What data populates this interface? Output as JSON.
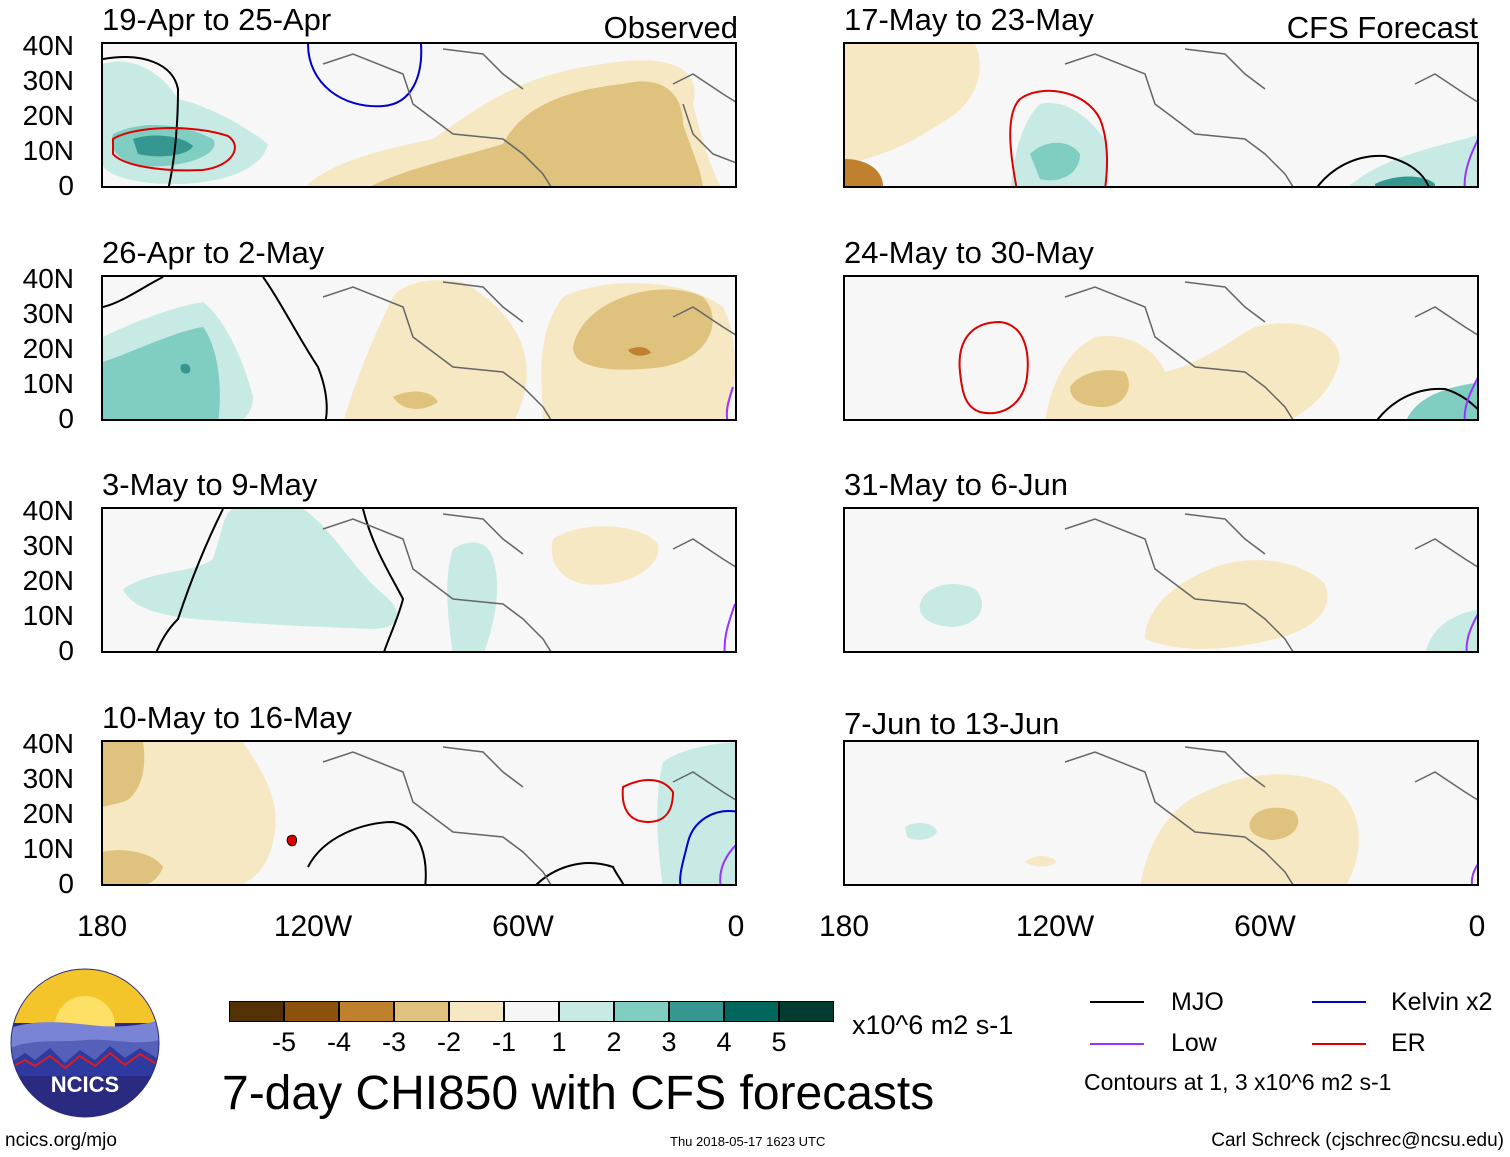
{
  "panels": [
    {
      "title": "19-Apr to 25-Apr",
      "label": "Observed"
    },
    {
      "title": "26-Apr to 2-May",
      "label": ""
    },
    {
      "title": "3-May to 9-May",
      "label": ""
    },
    {
      "title": "10-May to 16-May",
      "label": ""
    },
    {
      "title": "17-May to 23-May",
      "label": "CFS Forecast"
    },
    {
      "title": "24-May to 30-May",
      "label": ""
    },
    {
      "title": "31-May to 6-Jun",
      "label": ""
    },
    {
      "title": "7-Jun to 13-Jun",
      "label": ""
    }
  ],
  "lat_ticks": [
    "40N",
    "30N",
    "20N",
    "10N",
    "0"
  ],
  "lon_ticks": [
    "180",
    "120W",
    "60W",
    "0"
  ],
  "legend": {
    "colors": [
      "#543005",
      "#8c510a",
      "#bf812d",
      "#dfc27d",
      "#f6e8c3",
      "#f5f5f5",
      "#c7eae5",
      "#80cdc1",
      "#35978f",
      "#01665e",
      "#003c30"
    ],
    "ticks": [
      "-5",
      "-4",
      "-3",
      "-2",
      "-1",
      "1",
      "2",
      "3",
      "4",
      "5"
    ],
    "units": "x10^6 m2 s-1",
    "title": "7-day CHI850 with CFS forecasts"
  },
  "line_legend": {
    "mjo": "MJO",
    "kelvin": "Kelvin x2",
    "low": "Low",
    "er": "ER",
    "contours_note": "Contours at 1, 3 x10^6 m2 s-1",
    "colors": {
      "mjo": "#000000",
      "kelvin": "#0000cc",
      "low": "#9933ff",
      "er": "#dd0000"
    }
  },
  "logo": {
    "text": "NCICS"
  },
  "footer": {
    "left": "ncics.org/mjo",
    "center": "Thu 2018-05-17 1623 UTC",
    "right": "Carl Schreck (cjschrec@ncsu.edu)"
  }
}
